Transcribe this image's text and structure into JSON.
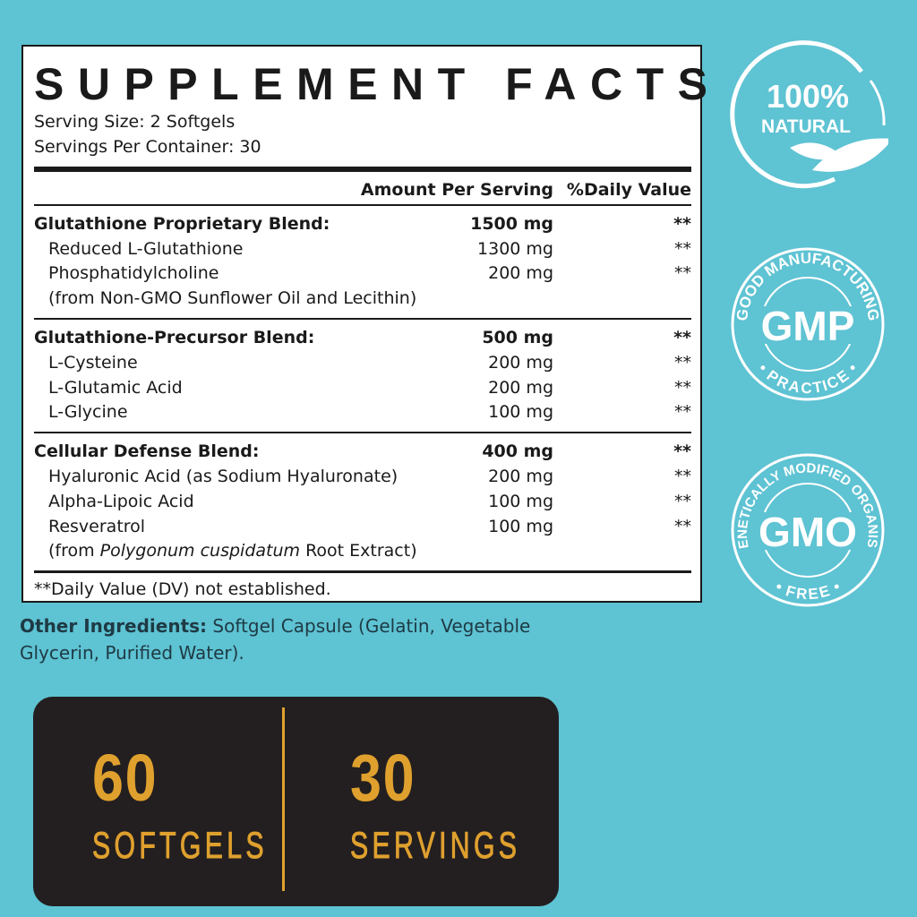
{
  "facts": {
    "title": "SUPPLEMENT FACTS",
    "serving_size": "Serving Size: 2 Softgels",
    "servings_per_container": "Servings Per Container: 30",
    "header": {
      "amount": "Amount Per Serving",
      "dv": "%Daily Value"
    },
    "sections": [
      {
        "rows": [
          {
            "name": "Glutathione Proprietary Blend:",
            "amount": "1500 mg",
            "dv": "**",
            "bold": true
          },
          {
            "name": "Reduced L-Glutathione",
            "amount": "1300 mg",
            "dv": "**"
          },
          {
            "name": "Phosphatidylcholine",
            "amount": "200 mg",
            "dv": "**"
          },
          {
            "name": "(from Non-GMO Sunflower Oil and Lecithin)",
            "amount": "",
            "dv": ""
          }
        ]
      },
      {
        "rows": [
          {
            "name": "Glutathione-Precursor Blend:",
            "amount": "500 mg",
            "dv": "**",
            "bold": true
          },
          {
            "name": "L-Cysteine",
            "amount": "200 mg",
            "dv": "**"
          },
          {
            "name": "L-Glutamic Acid",
            "amount": "200 mg",
            "dv": "**"
          },
          {
            "name": "L-Glycine",
            "amount": "100 mg",
            "dv": "**"
          }
        ]
      },
      {
        "rows": [
          {
            "name": "Cellular Defense Blend:",
            "amount": "400 mg",
            "dv": "**",
            "bold": true
          },
          {
            "name": "Hyaluronic Acid (as Sodium Hyaluronate)",
            "amount": "200 mg",
            "dv": "**"
          },
          {
            "name": "Alpha-Lipoic Acid",
            "amount": "100 mg",
            "dv": "**"
          },
          {
            "name": "Resveratrol",
            "amount": "100 mg",
            "dv": "**"
          },
          {
            "name": "(from Polygonum cuspidatum Root Extract)",
            "amount": "",
            "dv": ""
          }
        ]
      }
    ],
    "footnote": "**Daily Value (DV) not established."
  },
  "other": {
    "label": "Other Ingredients:",
    "text": " Softgel Capsule (Gelatin, Vegetable Glycerin, Purified Water)."
  },
  "stats": [
    {
      "number": "60",
      "label": "SOFTGELS"
    },
    {
      "number": "30",
      "label": "SERVINGS"
    }
  ],
  "badges": {
    "natural": {
      "top": "100%",
      "bottom": "NATURAL",
      "icon": "leaf-icon"
    },
    "gmp": {
      "arc_top": "GOOD MANUFACTURING",
      "center": "GMP",
      "arc_bottom": "• PRACTICE •"
    },
    "gmo": {
      "arc_top": "GENETICALLY MODIFIED ORGANISM",
      "center": "GMO",
      "arc_bottom": "• FREE •"
    }
  },
  "colors": {
    "background": "#5ec3d3",
    "stats_bg": "#231f20",
    "gold": "#dfa02e"
  }
}
